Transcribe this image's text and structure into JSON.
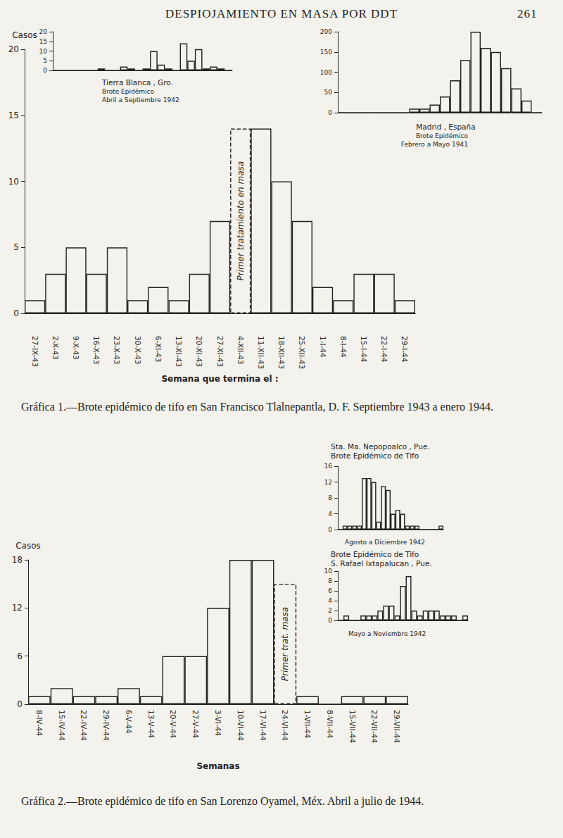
{
  "header": {
    "title": "DESPIOJAMIENTO EN MASA POR DDT",
    "page": "261"
  },
  "chart_data": [
    {
      "type": "bar",
      "caption": "Gráfica 1.—Brote epidémico de tifo en San Francisco Tlalnepantla, D. F. Septiembre 1943 a enero 1944.",
      "xlabel": "Semana que termina el :",
      "ylabel": "Casos",
      "categories": [
        "27-IX-43",
        "2-X-43",
        "9-X-43",
        "16-X-43",
        "23-X-43",
        "30-X-43",
        "6-XI-43",
        "13-XI-43",
        "20-XI-43",
        "27-XI-43",
        "4-XII-43",
        "11-XII-43",
        "18-XII-43",
        "25-XII-43",
        "1-I-44",
        "8-I-44",
        "15-I-44",
        "22-I-44",
        "29-I-44"
      ],
      "values": [
        1,
        3,
        5,
        3,
        5,
        1,
        2,
        1,
        3,
        7,
        14,
        14,
        10,
        7,
        2,
        1,
        3,
        3,
        1
      ],
      "annotations": [
        {
          "text": "Primer tratamiento en masa",
          "category": "4-XII-43"
        }
      ],
      "color": "#222222",
      "ylim": [
        0,
        20
      ],
      "yticks": [
        0,
        5,
        10,
        15,
        20
      ],
      "grid": false
    },
    {
      "type": "bar",
      "title": "Tierra Blanca , Gro.",
      "subtitle": "Brote Epidémico\nAbril a Septiembre 1942",
      "categories": [
        null,
        null,
        null,
        null,
        null,
        null,
        null,
        null,
        null,
        null,
        null,
        null,
        null,
        null,
        null,
        null,
        null,
        null,
        null,
        null,
        null,
        null,
        null,
        null
      ],
      "values": [
        0,
        0,
        0,
        0,
        0,
        0,
        1,
        0,
        0,
        2,
        1,
        0,
        1,
        10,
        3,
        1,
        0,
        14,
        5,
        11,
        1,
        2,
        1,
        0
      ],
      "color": "#222222",
      "ylim": [
        0,
        20
      ],
      "yticks": [
        0,
        5,
        10,
        15,
        20
      ],
      "grid": false,
      "tick_labels": "y"
    },
    {
      "type": "bar",
      "title": "Madrid , España",
      "subtitle": "Brote Epidémico\nFebrero a Mayo 1941",
      "categories": [
        null,
        null,
        null,
        null,
        null,
        null,
        null,
        null,
        null,
        null,
        null,
        null,
        null,
        null,
        null,
        null,
        null,
        null,
        null,
        null
      ],
      "values": [
        0,
        0,
        0,
        0,
        0,
        0,
        0,
        10,
        10,
        20,
        40,
        80,
        130,
        200,
        160,
        150,
        110,
        60,
        30,
        0
      ],
      "color": "#222222",
      "ylim": [
        0,
        200
      ],
      "yticks": [
        0,
        50,
        100,
        150,
        200
      ],
      "grid": false,
      "tick_labels": "y"
    },
    {
      "type": "bar",
      "caption": "Gráfica 2.—Brote epidémico de tifo en San Lorenzo Oyamel, Méx. Abril a julio de 1944.",
      "xlabel": "Semanas",
      "ylabel": "Casos",
      "categories": [
        "8-IV-44",
        "15-IV-44",
        "22-IV-44",
        "29-IV-44",
        "6-V-44",
        "13-V-44",
        "20-V-44",
        "27-V-44",
        "3-VI-44",
        "10-VI-44",
        "17-VI-44",
        "24-VI-44",
        "1-VII-44",
        "8-VII-44",
        "15-VII-44",
        "22-VII-44",
        "29-VII-44"
      ],
      "values": [
        1,
        2,
        1,
        1,
        2,
        1,
        6,
        6,
        12,
        18,
        18,
        15,
        1,
        0,
        1,
        1,
        1
      ],
      "annotations": [
        {
          "text": "Primer trat. masa",
          "category": "24-VI-44"
        }
      ],
      "color": "#222222",
      "ylim": [
        0,
        18
      ],
      "yticks": [
        0,
        6,
        12,
        18
      ],
      "grid": false
    },
    {
      "type": "bar",
      "title": "Sta. Ma. Nepopoalco , Pue.\nBrote Epidémico de Tifo",
      "subtitle": "Agosto a Diciembre 1942",
      "categories": [
        null,
        null,
        null,
        null,
        null,
        null,
        null,
        null,
        null,
        null,
        null,
        null,
        null,
        null,
        null,
        null,
        null,
        null,
        null,
        null,
        null,
        null
      ],
      "values": [
        0,
        1,
        1,
        1,
        1,
        13,
        13,
        12,
        2,
        11,
        10,
        4,
        5,
        4,
        1,
        1,
        1,
        0,
        0,
        0,
        0,
        1
      ],
      "color": "#222222",
      "ylim": [
        0,
        16
      ],
      "yticks": [
        0,
        4,
        8,
        12,
        16
      ],
      "grid": false,
      "tick_labels": "y"
    },
    {
      "type": "bar",
      "title": "Brote Epidémico de Tifo\nS. Rafael Ixtapalucan , Pue.",
      "subtitle": "Mayo a Noviembre 1942",
      "categories": [
        null,
        null,
        null,
        null,
        null,
        null,
        null,
        null,
        null,
        null,
        null,
        null,
        null,
        null,
        null,
        null,
        null,
        null,
        null,
        null,
        null,
        null,
        null
      ],
      "values": [
        0,
        1,
        0,
        0,
        1,
        1,
        1,
        2,
        3,
        3,
        1,
        7,
        9,
        2,
        1,
        2,
        2,
        2,
        1,
        1,
        1,
        0,
        1
      ],
      "color": "#222222",
      "ylim": [
        0,
        10
      ],
      "yticks": [
        0,
        2,
        4,
        6,
        8,
        10
      ],
      "grid": false,
      "tick_labels": "y"
    }
  ]
}
